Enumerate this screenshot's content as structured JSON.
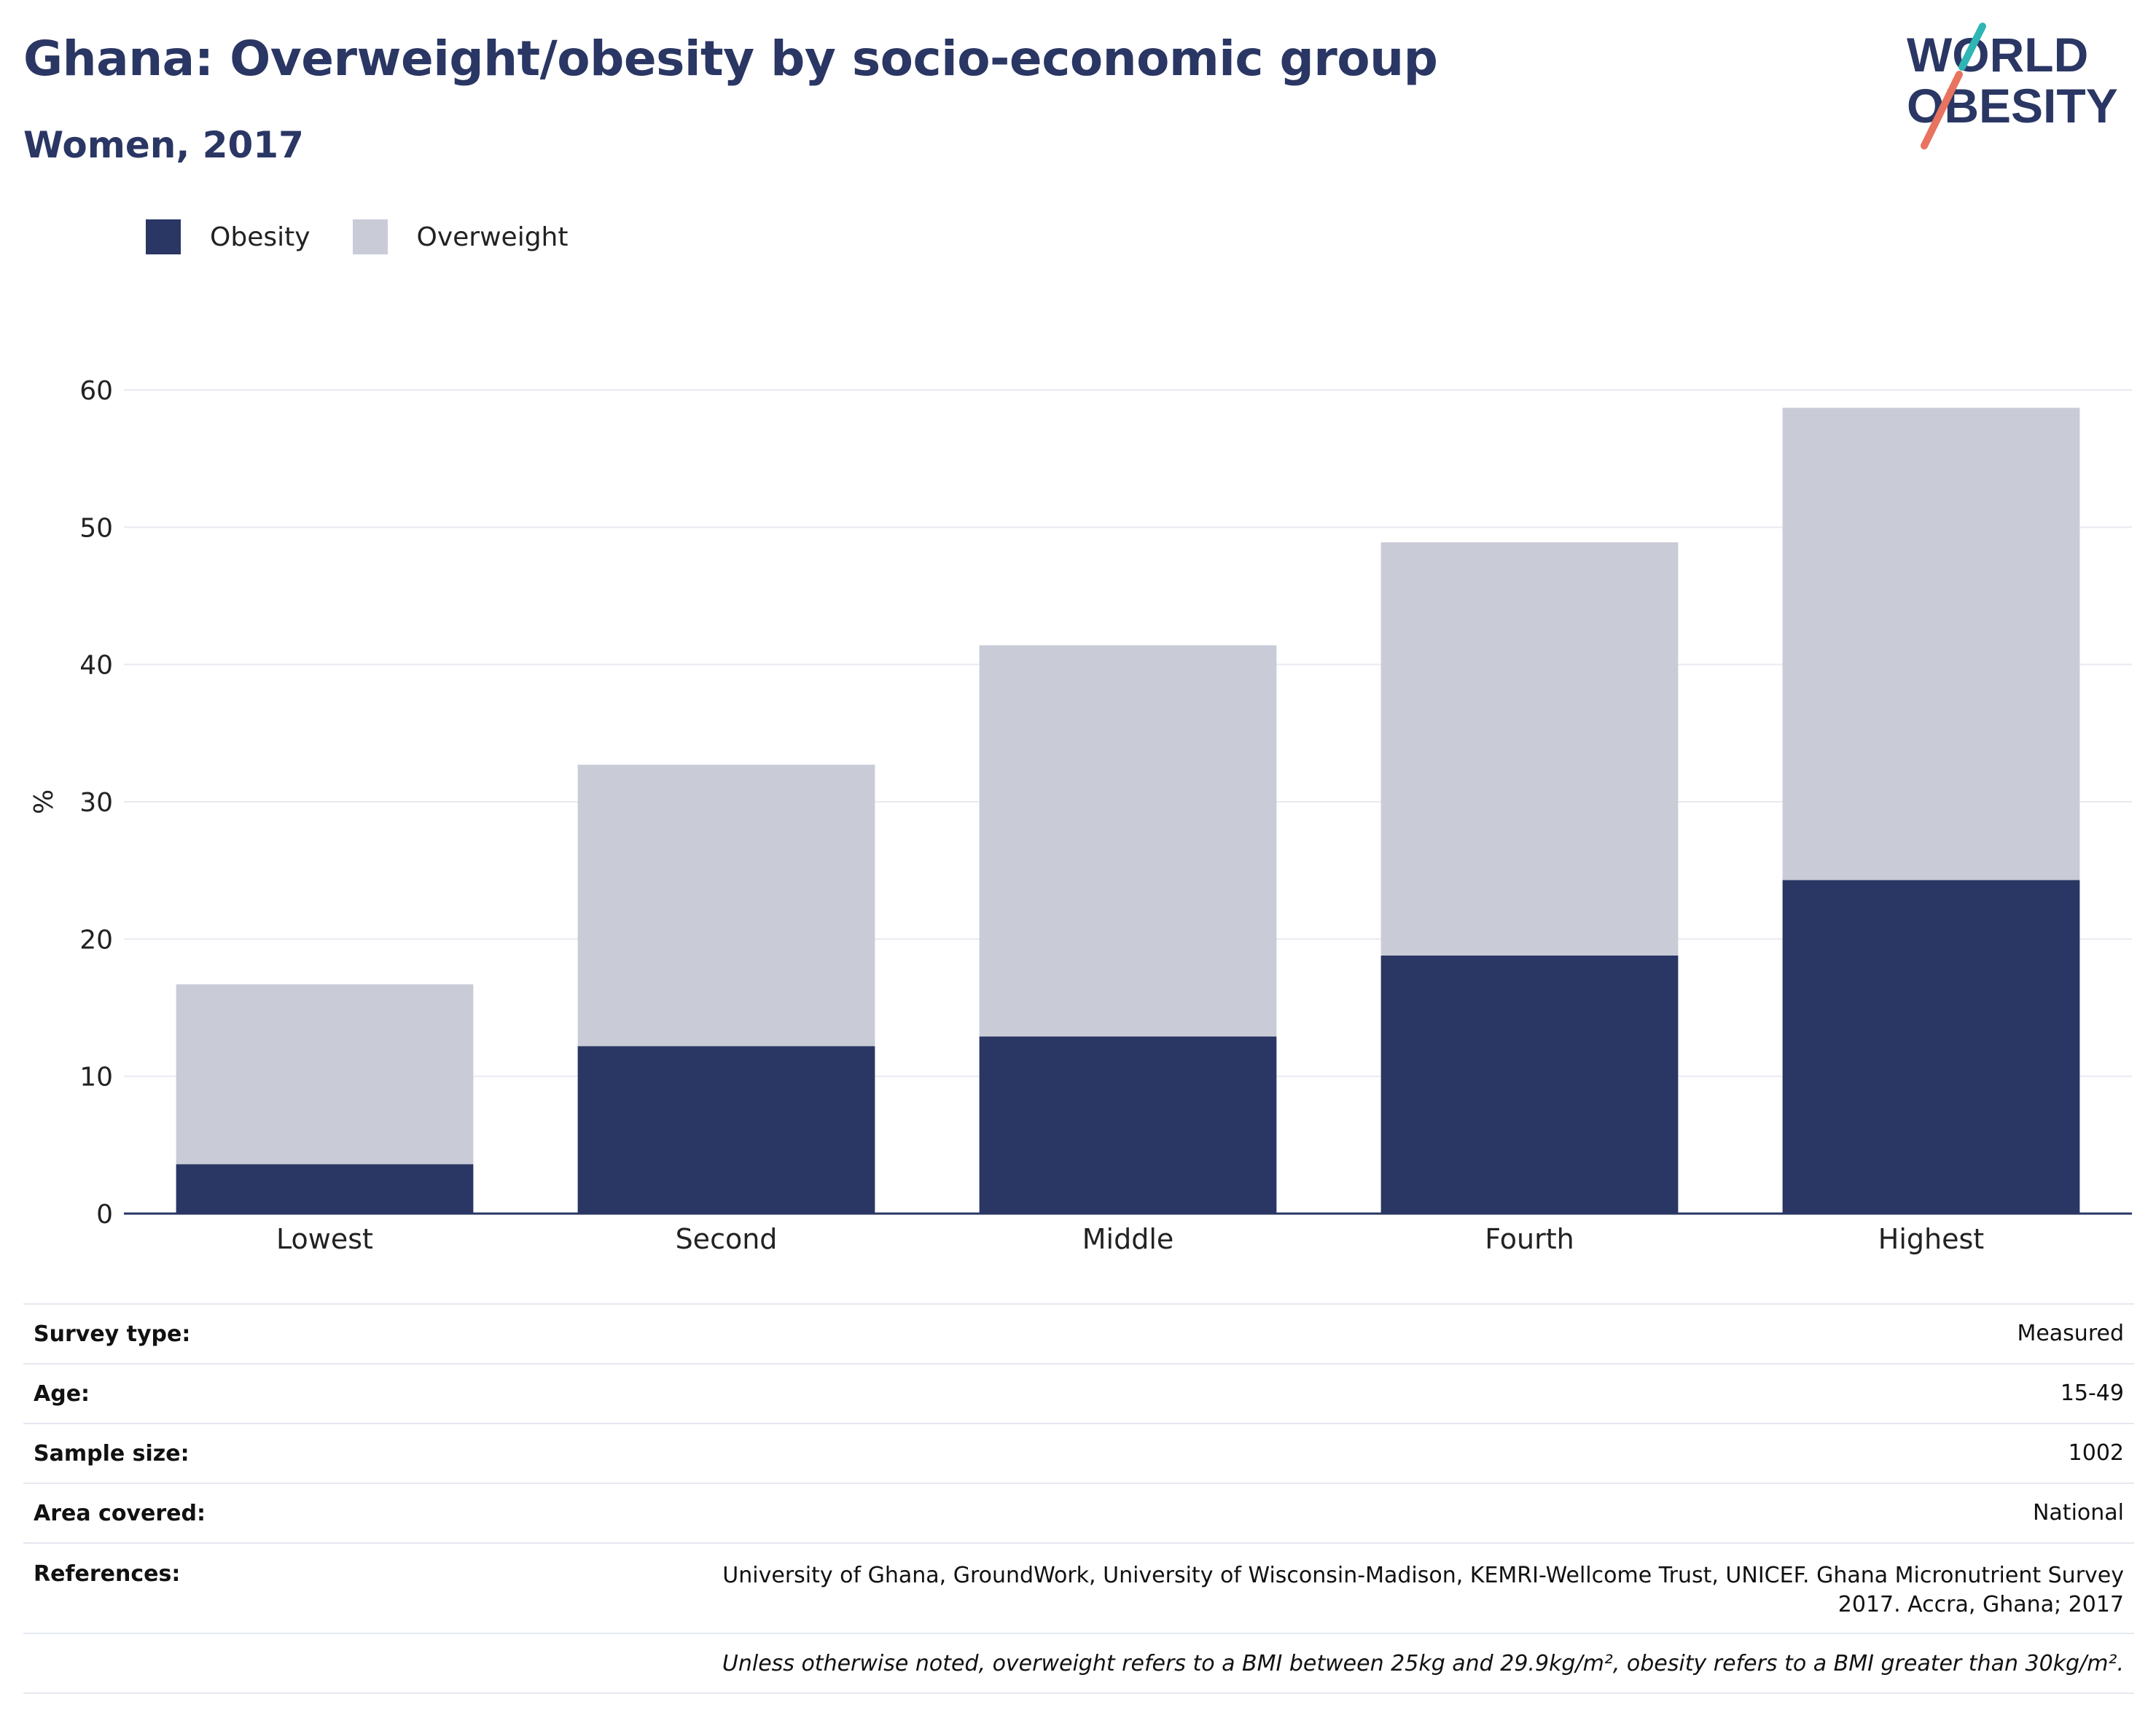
{
  "header": {
    "title": "Ghana: Overweight/obesity by socio-economic group",
    "subtitle": "Women, 2017"
  },
  "logo": {
    "line1": "WORLD",
    "line2": "OBESITY",
    "accent_teal": "#2fb5b5",
    "accent_coral": "#e8735f"
  },
  "colors": {
    "obesity": "#2a3663",
    "overweight": "#c9cbd7",
    "gridline": "#e9eaf0",
    "axis": "#2a3663"
  },
  "legend": [
    {
      "label": "Obesity",
      "color": "#2a3663"
    },
    {
      "label": "Overweight",
      "color": "#c9cbd7"
    }
  ],
  "chart_data": {
    "type": "bar",
    "stacked": true,
    "categories": [
      "Lowest",
      "Second",
      "Middle",
      "Fourth",
      "Highest"
    ],
    "series": [
      {
        "name": "Obesity",
        "values": [
          3.6,
          12.2,
          12.9,
          18.8,
          24.3
        ]
      },
      {
        "name": "Overweight",
        "values": [
          13.1,
          20.5,
          28.5,
          30.1,
          34.4
        ]
      }
    ],
    "ylabel": "%",
    "xlabel": "",
    "ylim": [
      0,
      60
    ],
    "yticks": [
      0,
      10,
      20,
      30,
      40,
      50,
      60
    ],
    "grid": true,
    "legend_position": "top-left"
  },
  "info": {
    "rows": [
      {
        "label": "Survey type:",
        "value": "Measured"
      },
      {
        "label": "Age:",
        "value": "15-49"
      },
      {
        "label": "Sample size:",
        "value": "1002"
      },
      {
        "label": "Area covered:",
        "value": "National"
      },
      {
        "label": "References:",
        "value": "University of Ghana, GroundWork, University of Wisconsin-Madison, KEMRI-Wellcome Trust, UNICEF. Ghana Micronutrient Survey 2017. Accra, Ghana; 2017"
      }
    ],
    "footnote": "Unless otherwise noted, overweight refers to a BMI between 25kg and 29.9kg/m², obesity refers to a BMI greater than 30kg/m²."
  }
}
